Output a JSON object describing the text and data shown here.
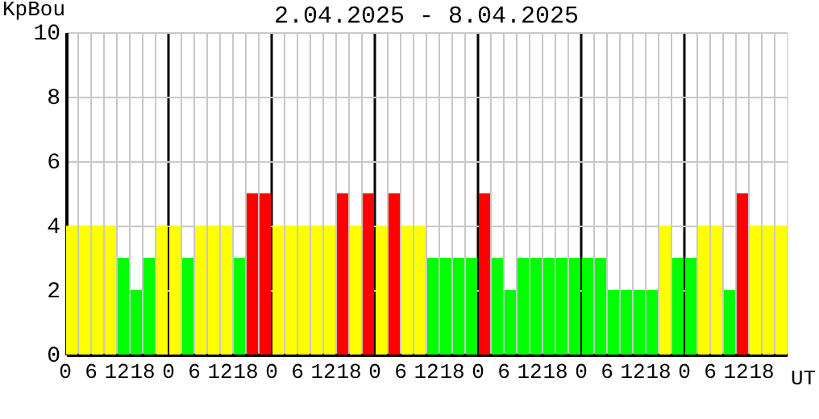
{
  "chart_data": {
    "type": "bar",
    "title": "2.04.2025 -  8.04.2025",
    "ylabel": "KpBou",
    "xlabel": "UT",
    "categories": [
      "0",
      null,
      "6",
      null,
      "12",
      null,
      "18",
      null,
      "0",
      null,
      "6",
      null,
      "12",
      null,
      "18",
      null,
      "0",
      null,
      "6",
      null,
      "12",
      null,
      "18",
      null,
      "0",
      null,
      "6",
      null,
      "12",
      null,
      "18",
      null,
      "0",
      null,
      "6",
      null,
      "12",
      null,
      "18",
      null,
      "0",
      null,
      "6",
      null,
      "12",
      null,
      "18",
      null,
      "0",
      null,
      "6",
      null,
      "12",
      null,
      "18",
      null
    ],
    "values": [
      4,
      4,
      4,
      4,
      3,
      2,
      3,
      4,
      4,
      3,
      4,
      4,
      4,
      3,
      5,
      5,
      4,
      4,
      4,
      4,
      4,
      5,
      4,
      5,
      4,
      5,
      4,
      4,
      3,
      3,
      3,
      3,
      5,
      3,
      2,
      3,
      3,
      3,
      3,
      3,
      3,
      3,
      2,
      2,
      2,
      2,
      4,
      3,
      3,
      4,
      4,
      2,
      5,
      4,
      4,
      4
    ],
    "colors": [
      "#ffff00",
      "#ffff00",
      "#ffff00",
      "#ffff00",
      "#00ff00",
      "#00ff00",
      "#00ff00",
      "#ffff00",
      "#ffff00",
      "#00ff00",
      "#ffff00",
      "#ffff00",
      "#ffff00",
      "#00ff00",
      "#ff0000",
      "#ff0000",
      "#ffff00",
      "#ffff00",
      "#ffff00",
      "#ffff00",
      "#ffff00",
      "#ff0000",
      "#ffff00",
      "#ff0000",
      "#ffff00",
      "#ff0000",
      "#ffff00",
      "#ffff00",
      "#00ff00",
      "#00ff00",
      "#00ff00",
      "#00ff00",
      "#ff0000",
      "#00ff00",
      "#00ff00",
      "#00ff00",
      "#00ff00",
      "#00ff00",
      "#00ff00",
      "#00ff00",
      "#00ff00",
      "#00ff00",
      "#00ff00",
      "#00ff00",
      "#00ff00",
      "#00ff00",
      "#ffff00",
      "#00ff00",
      "#00ff00",
      "#ffff00",
      "#ffff00",
      "#00ff00",
      "#ff0000",
      "#ffff00",
      "#ffff00",
      "#ffff00"
    ],
    "ylim": [
      0,
      10
    ],
    "yticks": [
      0,
      2,
      4,
      6,
      8,
      10
    ],
    "grid": true
  }
}
